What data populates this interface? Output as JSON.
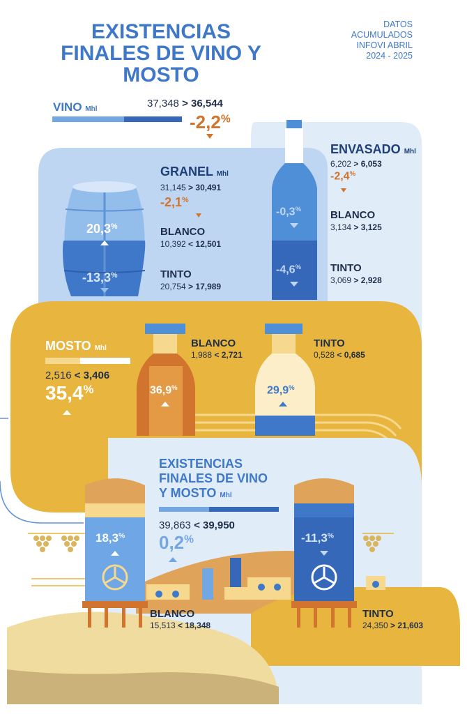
{
  "title": "EXISTENCIAS FINALES DE VINO Y MOSTO",
  "meta": {
    "l1": "DATOS",
    "l2": "ACUMULADOS",
    "l3": "INFOVI ABRIL",
    "l4": "2024 - 2025"
  },
  "unit": "Mhl",
  "vino": {
    "label": "VINO",
    "from": "37,348",
    "sep": ">",
    "to": "36,544",
    "pct": "-2,2",
    "pct_sign": "%",
    "direction": "down"
  },
  "granel": {
    "label": "GRANEL",
    "from": "31,145",
    "sep": ">",
    "to": "30,491",
    "pct": "-2,1",
    "direction": "down",
    "blanco": {
      "label": "BLANCO",
      "from": "10,392",
      "sep": "<",
      "to": "12,501",
      "pct": "20,3",
      "direction": "up"
    },
    "tinto": {
      "label": "TINTO",
      "from": "20,754",
      "sep": ">",
      "to": "17,989",
      "pct": "-13,3",
      "direction": "down"
    }
  },
  "envasado": {
    "label": "ENVASADO",
    "from": "6,202",
    "sep": ">",
    "to": "6,053",
    "pct": "-2,4",
    "direction": "down",
    "blanco": {
      "label": "BLANCO",
      "from": "3,134",
      "sep": ">",
      "to": "3,125",
      "pct": "-0,3",
      "direction": "down"
    },
    "tinto": {
      "label": "TINTO",
      "from": "3,069",
      "sep": ">",
      "to": "2,928",
      "pct": "-4,6",
      "direction": "down"
    }
  },
  "mosto": {
    "label": "MOSTO",
    "from": "2,516",
    "sep": "<",
    "to": "3,406",
    "pct": "35,4",
    "direction": "up",
    "blanco": {
      "label": "BLANCO",
      "from": "1,988",
      "sep": "<",
      "to": "2,721",
      "pct": "36,9",
      "direction": "up"
    },
    "tinto": {
      "label": "TINTO",
      "from": "0,528",
      "sep": "<",
      "to": "0,685",
      "pct": "29,9",
      "direction": "up"
    }
  },
  "total": {
    "label_l1": "EXISTENCIAS",
    "label_l2": "FINALES DE VINO",
    "label_l3": "Y MOSTO",
    "from": "39,863",
    "sep": "<",
    "to": "39,950",
    "pct": "0,2",
    "direction": "up",
    "blanco": {
      "label": "BLANCO",
      "from": "15,513",
      "sep": "<",
      "to": "18,348",
      "pct": "18,3",
      "direction": "up"
    },
    "tinto": {
      "label": "TINTO",
      "from": "24,350",
      "sep": ">",
      "to": "21,603",
      "pct": "-11,3",
      "direction": "down"
    }
  },
  "colors": {
    "title_blue": "#3f78c8",
    "dark_text": "#1f2f4a",
    "orange": "#d1742e",
    "light_blue_panel": "#bfd6f2",
    "pale_blue_panel": "#e1ecf9",
    "gold_panel": "#e8b63f",
    "sand": "#f1dca0",
    "bottle_blue": "#4f8fd8",
    "dark_blue": "#3568b9"
  }
}
